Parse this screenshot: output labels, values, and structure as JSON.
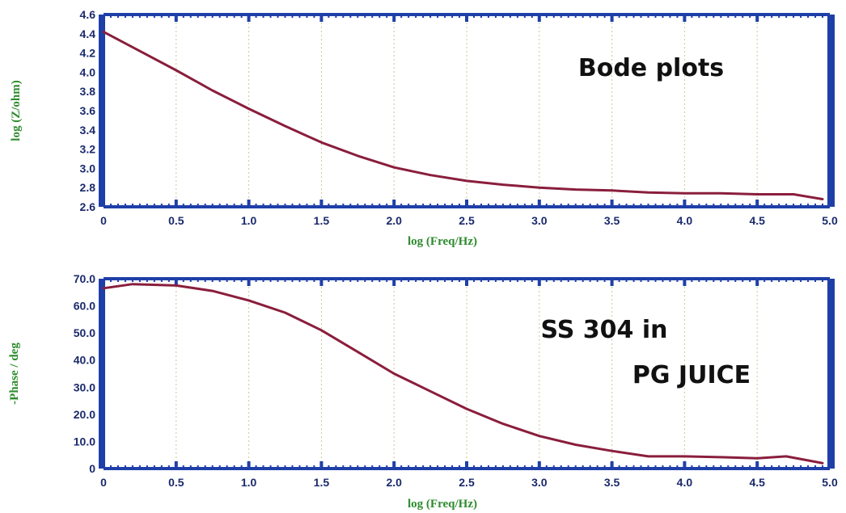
{
  "colors": {
    "frame": "#1f3fa8",
    "curve": "#8a1e3c",
    "axis_label": "#2e8b2e",
    "tick": "#1a2a6c",
    "grid": "#c8c8a0"
  },
  "chart_data": [
    {
      "type": "line",
      "xlabel": "log (Freq/Hz)",
      "ylabel": "log (Z/ohm)",
      "xlim": [
        0,
        5
      ],
      "ylim": [
        2.6,
        4.6
      ],
      "x_ticks": [
        "0",
        "0.5",
        "1.0",
        "1.5",
        "2.0",
        "2.5",
        "3.0",
        "3.5",
        "4.0",
        "4.5",
        "5.0"
      ],
      "y_ticks": [
        "2.6",
        "2.8",
        "3.0",
        "3.2",
        "3.4",
        "3.6",
        "3.8",
        "4.0",
        "4.2",
        "4.4",
        "4.6"
      ],
      "grid": true,
      "annotations": [
        "Bode plots"
      ],
      "series": [
        {
          "x": [
            0,
            0.25,
            0.5,
            0.75,
            1.0,
            1.25,
            1.5,
            1.75,
            2.0,
            2.25,
            2.5,
            2.75,
            3.0,
            3.25,
            3.5,
            3.75,
            4.0,
            4.25,
            4.5,
            4.75,
            4.95
          ],
          "y": [
            4.42,
            4.22,
            4.02,
            3.81,
            3.62,
            3.44,
            3.27,
            3.13,
            3.01,
            2.93,
            2.87,
            2.83,
            2.8,
            2.78,
            2.77,
            2.75,
            2.74,
            2.74,
            2.73,
            2.73,
            2.68
          ]
        }
      ]
    },
    {
      "type": "line",
      "xlabel": "log (Freq/Hz)",
      "ylabel": "-Phase / deg",
      "xlim": [
        0,
        5
      ],
      "ylim": [
        0,
        70
      ],
      "x_ticks": [
        "0",
        "0.5",
        "1.0",
        "1.5",
        "2.0",
        "2.5",
        "3.0",
        "3.5",
        "4.0",
        "4.5",
        "5.0"
      ],
      "y_ticks": [
        "0",
        "10.0",
        "20.0",
        "30.0",
        "40.0",
        "50.0",
        "60.0",
        "70.0"
      ],
      "grid": true,
      "annotations": [
        "SS 304 in",
        "PG JUICE"
      ],
      "series": [
        {
          "x": [
            0,
            0.2,
            0.5,
            0.75,
            1.0,
            1.25,
            1.5,
            1.75,
            2.0,
            2.25,
            2.5,
            2.75,
            3.0,
            3.25,
            3.5,
            3.75,
            4.0,
            4.25,
            4.5,
            4.7,
            4.95
          ],
          "y": [
            66.5,
            68,
            67.5,
            65.5,
            62,
            57.5,
            51,
            43,
            35,
            28.5,
            22,
            16.5,
            12,
            8.8,
            6.5,
            4.5,
            4.5,
            4.2,
            3.8,
            4.5,
            2
          ]
        }
      ]
    }
  ]
}
